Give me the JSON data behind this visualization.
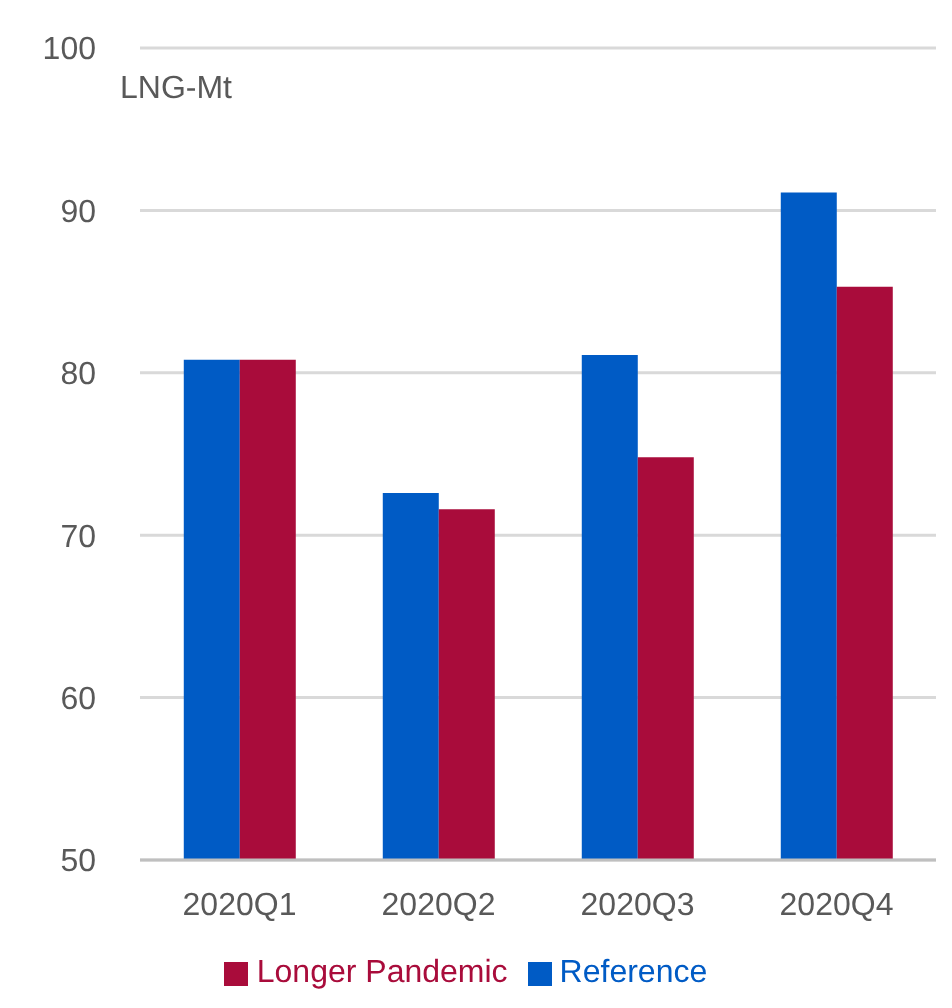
{
  "chart_data": {
    "type": "bar",
    "ylabel": "LNG-Mt",
    "categories": [
      "2020Q1",
      "2020Q2",
      "2020Q3",
      "2020Q4"
    ],
    "series": [
      {
        "name": "Reference",
        "color": "#005bc5",
        "values": [
          80.8,
          72.6,
          81.1,
          91.1
        ]
      },
      {
        "name": "Longer Pandemic",
        "color": "#a90c3b",
        "values": [
          80.8,
          71.6,
          74.8,
          85.3
        ]
      }
    ],
    "ylim": [
      50,
      100
    ],
    "yticks": [
      50,
      60,
      70,
      80,
      90,
      100
    ],
    "grid": "y",
    "legend": "bottom"
  }
}
